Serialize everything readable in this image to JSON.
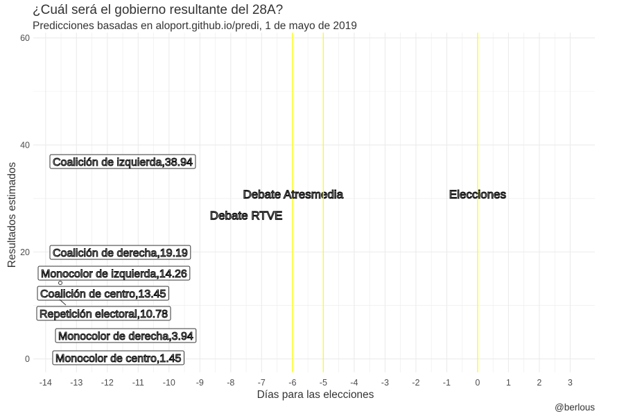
{
  "title": "¿Cuál será el gobierno resultante del 28A?",
  "subtitle": "Predicciones basadas en aloport.github.io/predi, 1 de mayo de 2019",
  "caption": "@berlous",
  "colors": {
    "grid": "#ebebeb",
    "event_line": "#ffff00",
    "label_border": "#333333"
  },
  "chart_data": {
    "type": "scatter",
    "title": "¿Cuál será el gobierno resultante del 28A?",
    "subtitle": "Predicciones basadas en aloport.github.io/predi, 1 de mayo de 2019",
    "xlabel": "Días para las elecciones",
    "ylabel": "Resultados estimados",
    "xlim": [
      -14.4,
      3.8
    ],
    "ylim": [
      -2.5,
      61
    ],
    "x_ticks": [
      -14,
      -13,
      -12,
      -11,
      -10,
      -9,
      -8,
      -7,
      -6,
      -5,
      -4,
      -3,
      -2,
      -1,
      0,
      1,
      2,
      3
    ],
    "y_ticks": [
      0,
      20,
      40,
      60
    ],
    "grid": true,
    "legend": "none",
    "series": [
      {
        "label": "Coalición de izquierda,38.94",
        "x": -14,
        "y": 38.94
      },
      {
        "label": "Coalición de derecha,19.19",
        "x": -14,
        "y": 19.19
      },
      {
        "label": "Monocolor de izquierda,14.26",
        "x": -14,
        "y": 14.26
      },
      {
        "label": "Coalición de centro,13.45",
        "x": -14,
        "y": 13.45
      },
      {
        "label": "Repetición electoral,10.78",
        "x": -14,
        "y": 10.78
      },
      {
        "label": "Monocolor de derecha,3.94",
        "x": -14,
        "y": 3.94
      },
      {
        "label": "Monocolor de centro,1.45",
        "x": -14,
        "y": 1.45
      }
    ],
    "events": [
      {
        "label": "Debate Atresmedia",
        "x": -6
      },
      {
        "label": "Debate RTVE",
        "x": -5
      },
      {
        "label": "Elecciones",
        "x": 0
      }
    ]
  }
}
